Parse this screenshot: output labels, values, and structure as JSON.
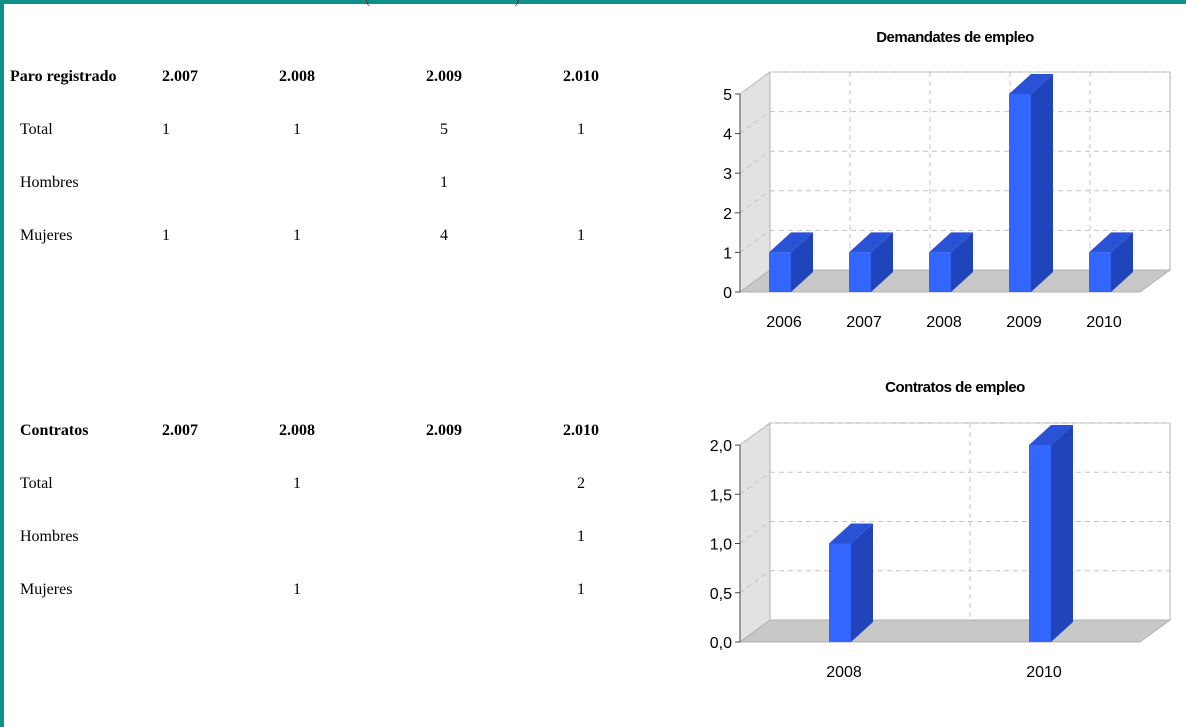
{
  "header_fragment": "(                                    )",
  "paro": {
    "headers": [
      "Paro registrado",
      "2.007",
      "2.008",
      "2.009",
      "2.010"
    ],
    "rows": [
      {
        "label": "Total",
        "v": [
          "1",
          "1",
          "5",
          "1"
        ]
      },
      {
        "label": "Hombres",
        "v": [
          "",
          "",
          "1",
          ""
        ]
      },
      {
        "label": "Mujeres",
        "v": [
          "1",
          "1",
          "4",
          "1"
        ]
      }
    ]
  },
  "contratos": {
    "headers": [
      "Contratos",
      "2.007",
      "2.008",
      "2.009",
      "2.010"
    ],
    "rows": [
      {
        "label": "Total",
        "v": [
          "",
          "1",
          "",
          "2"
        ]
      },
      {
        "label": "Hombres",
        "v": [
          "",
          "",
          "",
          "1"
        ]
      },
      {
        "label": "Mujeres",
        "v": [
          "",
          "1",
          "",
          "1"
        ]
      }
    ]
  },
  "chart_data": [
    {
      "type": "bar",
      "title": "Demandates de empleo",
      "categories": [
        "2006",
        "2007",
        "2008",
        "2009",
        "2010"
      ],
      "values": [
        1,
        1,
        1,
        5,
        1
      ],
      "ylim": [
        0,
        5
      ],
      "yticks": [
        "0",
        "1",
        "2",
        "3",
        "4",
        "5"
      ],
      "grid": true,
      "colors": {
        "front": "#3366ff",
        "side": "#2244bb",
        "top": "#2a52d6",
        "wall": "#e2e2e2",
        "floor": "#c8c8c8"
      }
    },
    {
      "type": "bar",
      "title": "Contratos de empleo",
      "categories": [
        "2008",
        "2010"
      ],
      "values": [
        1,
        2
      ],
      "ylim": [
        0,
        2
      ],
      "yticks": [
        "0,0",
        "0,5",
        "1,0",
        "1,5",
        "2,0"
      ],
      "grid": true,
      "colors": {
        "front": "#3366ff",
        "side": "#2244bb",
        "top": "#2a52d6",
        "wall": "#e2e2e2",
        "floor": "#c8c8c8"
      }
    }
  ]
}
